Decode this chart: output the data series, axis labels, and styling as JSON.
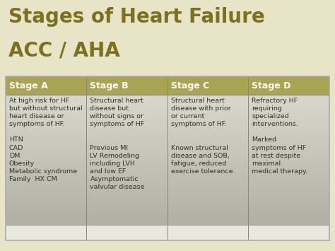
{
  "title_line1": "Stages of Heart Failure",
  "title_line2": "ACC / AHA",
  "title_color": "#7a7020",
  "title_fontsize": 20,
  "title2_fontsize": 20,
  "background_color": "#e8e4c8",
  "header_bg_color": "#a8a454",
  "header_text_color": "#ffffff",
  "table_border_color": "#888877",
  "headers": [
    "Stage A",
    "Stage B",
    "Stage C",
    "Stage D"
  ],
  "cell_contents": [
    "At high risk for HF\nbut without structural\nheart disease or\nsymptoms of HF.\n\nHTN\nCAD\nDM\nObesity\nMetabolic syndrome\nFamily  HX CM",
    "Structural heart\ndisease but\nwithout signs or\nsymptoms of HF\n\n\nPrevious MI\nLV Remodeling\nincluding LVH\nand low EF\nAsymptomatic\nvalvular disease",
    "Structural heart\ndisease with prior\nor current\nsymptoms of HF.\n\n\nKnown structural\ndisease and SOB,\nfatigue, reduced\nexercise tolerance.",
    "Refractory HF\nrequiring\nspecialized\ninterventions.\n\nMarked\nsymptoms of HF\nat rest despite\nmaximal\nmedical therapy."
  ],
  "cell_text_color": "#333322",
  "cell_fontsize": 6.8,
  "header_fontsize": 9.0,
  "cell_top_color": "#d8d8cc",
  "cell_bottom_color": "#b0b0a4",
  "cell_white_strip_color": "#e8e8e0",
  "outer_border_color": "#aaaaaa"
}
